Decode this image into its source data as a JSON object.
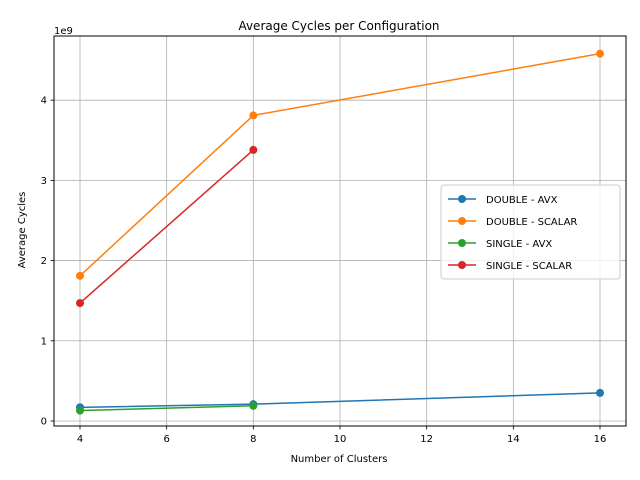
{
  "chart_data": {
    "type": "line",
    "title": "Average Cycles per Configuration",
    "xlabel": "Number of Clusters",
    "ylabel": "Average Cycles",
    "y_offset_label": "1e9",
    "xlim": [
      3.4,
      16.6
    ],
    "ylim": [
      -0.0625,
      4.8
    ],
    "xticks": [
      4,
      6,
      8,
      10,
      12,
      14,
      16
    ],
    "yticks": [
      0,
      1,
      2,
      3,
      4
    ],
    "grid": true,
    "legend_position": "center-right",
    "series": [
      {
        "name": "DOUBLE - AVX",
        "color": "#1f77b4",
        "x": [
          4,
          8,
          16
        ],
        "y": [
          0.17,
          0.21,
          0.35
        ]
      },
      {
        "name": "DOUBLE - SCALAR",
        "color": "#ff7f0e",
        "x": [
          4,
          8,
          16
        ],
        "y": [
          1.81,
          3.81,
          4.58
        ]
      },
      {
        "name": "SINGLE - AVX",
        "color": "#2ca02c",
        "x": [
          4,
          8
        ],
        "y": [
          0.13,
          0.19
        ]
      },
      {
        "name": "SINGLE - SCALAR",
        "color": "#d62728",
        "x": [
          4,
          8
        ],
        "y": [
          1.47,
          3.38
        ]
      }
    ]
  }
}
